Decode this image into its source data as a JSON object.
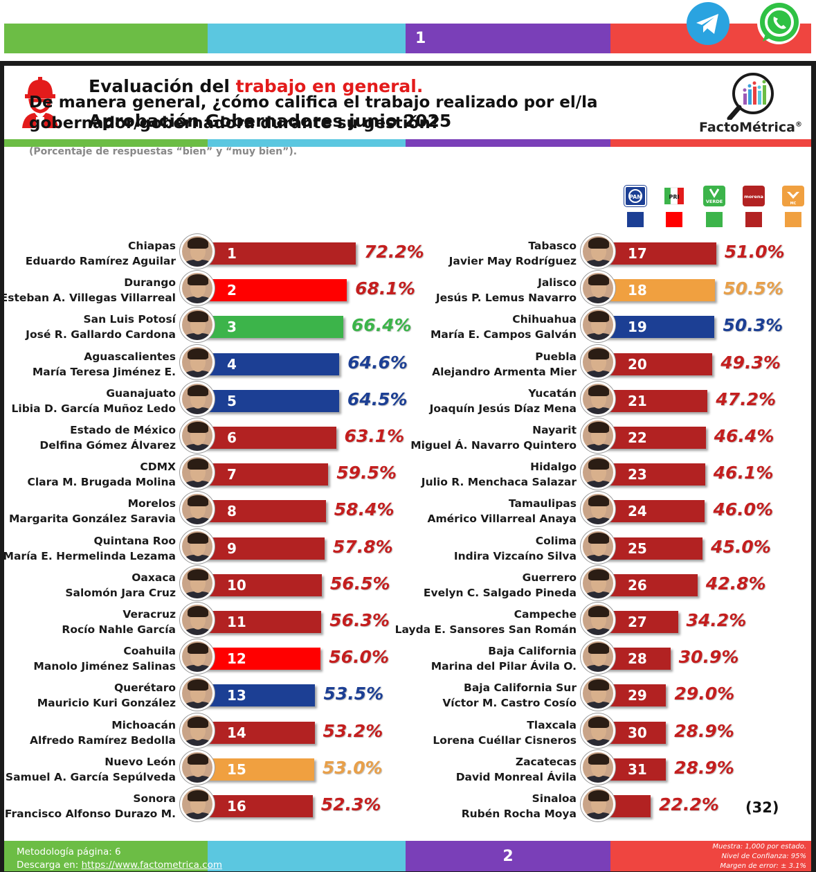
{
  "header": {
    "page_number_top": "1",
    "title_prefix": "Evaluación del ",
    "title_highlight": "trabajo en general.",
    "subtitle": "Aprobación Gobernadores junio 2025",
    "brand": "FactoMétrica",
    "brand_mark": "®"
  },
  "question": "De manera general, ¿cómo califica el trabajo realizado por el/la gobernador/gobernadora durante su gestión?",
  "note": "(Porcentaje de respuestas “bien” y “muy bien”).",
  "legend": [
    {
      "party": "PAN",
      "color": "#1c3f94"
    },
    {
      "party": "PRI",
      "color": "#ff0000"
    },
    {
      "party": "VERDE",
      "color": "#3cb44a"
    },
    {
      "party": "morena",
      "color": "#b22222"
    },
    {
      "party": "MC",
      "color": "#f0a040"
    }
  ],
  "colors": {
    "morena": "#b22222",
    "pri": "#ff0000",
    "verde": "#3cb44a",
    "pan": "#1c3f94",
    "mc": "#f0a040",
    "pct_pan": "#1c3f94",
    "pct_red": "#c41e1e",
    "pct_verde": "#3cb44a",
    "pct_mc": "#e8a04a"
  },
  "chart_data": {
    "type": "bar",
    "title": "Aprobación Gobernadores junio 2025",
    "unit": "%",
    "items": [
      {
        "rank": "1",
        "state": "Chiapas",
        "governor": "Eduardo Ramírez Aguilar",
        "value": 72.2,
        "label": "72.2%",
        "party": "morena"
      },
      {
        "rank": "2",
        "state": "Durango",
        "governor": "Esteban A. Villegas Villarreal",
        "value": 68.1,
        "label": "68.1%",
        "party": "pri"
      },
      {
        "rank": "3",
        "state": "San Luis Potosí",
        "governor": "José R. Gallardo Cardona",
        "value": 66.4,
        "label": "66.4%",
        "party": "verde"
      },
      {
        "rank": "4",
        "state": "Aguascalientes",
        "governor": "María Teresa Jiménez E.",
        "value": 64.6,
        "label": "64.6%",
        "party": "pan"
      },
      {
        "rank": "5",
        "state": "Guanajuato",
        "governor": "Libia D. García Muñoz Ledo",
        "value": 64.5,
        "label": "64.5%",
        "party": "pan"
      },
      {
        "rank": "6",
        "state": "Estado de México",
        "governor": "Delfina Gómez Álvarez",
        "value": 63.1,
        "label": "63.1%",
        "party": "morena"
      },
      {
        "rank": "7",
        "state": "CDMX",
        "governor": "Clara M. Brugada Molina",
        "value": 59.5,
        "label": "59.5%",
        "party": "morena"
      },
      {
        "rank": "8",
        "state": "Morelos",
        "governor": "Margarita González Saravia",
        "value": 58.4,
        "label": "58.4%",
        "party": "morena"
      },
      {
        "rank": "9",
        "state": "Quintana Roo",
        "governor": "María E. Hermelinda Lezama",
        "value": 57.8,
        "label": "57.8%",
        "party": "morena"
      },
      {
        "rank": "10",
        "state": "Oaxaca",
        "governor": "Salomón Jara Cruz",
        "value": 56.5,
        "label": "56.5%",
        "party": "morena"
      },
      {
        "rank": "11",
        "state": "Veracruz",
        "governor": "Rocío Nahle García",
        "value": 56.3,
        "label": "56.3%",
        "party": "morena"
      },
      {
        "rank": "12",
        "state": "Coahuila",
        "governor": "Manolo Jiménez Salinas",
        "value": 56.0,
        "label": "56.0%",
        "party": "pri"
      },
      {
        "rank": "13",
        "state": "Querétaro",
        "governor": "Mauricio Kuri González",
        "value": 53.5,
        "label": "53.5%",
        "party": "pan"
      },
      {
        "rank": "14",
        "state": "Michoacán",
        "governor": "Alfredo Ramírez Bedolla",
        "value": 53.2,
        "label": "53.2%",
        "party": "morena"
      },
      {
        "rank": "15",
        "state": "Nuevo León",
        "governor": "Samuel A. García Sepúlveda",
        "value": 53.0,
        "label": "53.0%",
        "party": "mc"
      },
      {
        "rank": "16",
        "state": "Sonora",
        "governor": "Francisco Alfonso Durazo M.",
        "value": 52.3,
        "label": "52.3%",
        "party": "morena"
      },
      {
        "rank": "17",
        "state": "Tabasco",
        "governor": "Javier May Rodríguez",
        "value": 51.0,
        "label": "51.0%",
        "party": "morena"
      },
      {
        "rank": "18",
        "state": "Jalisco",
        "governor": "Jesús P. Lemus Navarro",
        "value": 50.5,
        "label": "50.5%",
        "party": "mc"
      },
      {
        "rank": "19",
        "state": "Chihuahua",
        "governor": "María E. Campos Galván",
        "value": 50.3,
        "label": "50.3%",
        "party": "pan"
      },
      {
        "rank": "20",
        "state": "Puebla",
        "governor": "Alejandro Armenta Mier",
        "value": 49.3,
        "label": "49.3%",
        "party": "morena"
      },
      {
        "rank": "21",
        "state": "Yucatán",
        "governor": "Joaquín Jesús Díaz Mena",
        "value": 47.2,
        "label": "47.2%",
        "party": "morena"
      },
      {
        "rank": "22",
        "state": "Nayarit",
        "governor": "Miguel Á. Navarro Quintero",
        "value": 46.4,
        "label": "46.4%",
        "party": "morena"
      },
      {
        "rank": "23",
        "state": "Hidalgo",
        "governor": "Julio R. Menchaca Salazar",
        "value": 46.1,
        "label": "46.1%",
        "party": "morena"
      },
      {
        "rank": "24",
        "state": "Tamaulipas",
        "governor": "Américo Villarreal Anaya",
        "value": 46.0,
        "label": "46.0%",
        "party": "morena"
      },
      {
        "rank": "25",
        "state": "Colima",
        "governor": "Indira Vizcaíno Silva",
        "value": 45.0,
        "label": "45.0%",
        "party": "morena"
      },
      {
        "rank": "26",
        "state": "Guerrero",
        "governor": "Evelyn C. Salgado Pineda",
        "value": 42.8,
        "label": "42.8%",
        "party": "morena"
      },
      {
        "rank": "27",
        "state": "Campeche",
        "governor": "Layda E. Sansores San Román",
        "value": 34.2,
        "label": "34.2%",
        "party": "morena"
      },
      {
        "rank": "28",
        "state": "Baja California",
        "governor": "Marina del Pilar Ávila O.",
        "value": 30.9,
        "label": "30.9%",
        "party": "morena"
      },
      {
        "rank": "29",
        "state": "Baja California Sur",
        "governor": "Víctor M. Castro Cosío",
        "value": 29.0,
        "label": "29.0%",
        "party": "morena"
      },
      {
        "rank": "30",
        "state": "Tlaxcala",
        "governor": "Lorena Cuéllar Cisneros",
        "value": 28.9,
        "label": "28.9%",
        "party": "morena"
      },
      {
        "rank": "31",
        "state": "Zacatecas",
        "governor": "David Monreal Ávila",
        "value": 28.9,
        "label": "28.9%",
        "party": "morena"
      },
      {
        "rank": "",
        "state": "Sinaloa",
        "governor": "Rubén Rocha Moya",
        "value": 22.2,
        "label": "22.2%",
        "party": "morena"
      }
    ]
  },
  "count_label": "(32)",
  "footer": {
    "page_number_bottom": "2",
    "method": "Metodología página: 6",
    "download_prefix": "Descarga en: ",
    "download_link": "https://www.factometrica.com",
    "sample": "Muestra:  1,000 por estado.",
    "confidence": "Nivel de Confianza: 95%",
    "margin": "Margen de error: ± 3.1%"
  }
}
